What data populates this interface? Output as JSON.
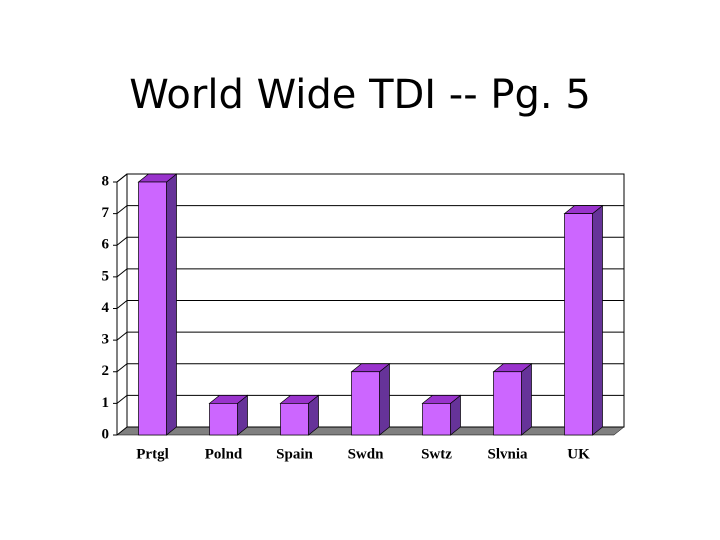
{
  "chart_data": {
    "type": "bar",
    "title": "World Wide TDI -- Pg. 5",
    "categories": [
      "Prtgl",
      "Polnd",
      "Spain",
      "Swdn",
      "Swtz",
      "Slvnia",
      "UK"
    ],
    "values": [
      8,
      1,
      1,
      2,
      1,
      2,
      7
    ],
    "color": "#cc66ff",
    "ylim": [
      0,
      8
    ],
    "yticks": [
      0,
      1,
      2,
      3,
      4,
      5,
      6,
      7,
      8
    ],
    "grid": true
  }
}
